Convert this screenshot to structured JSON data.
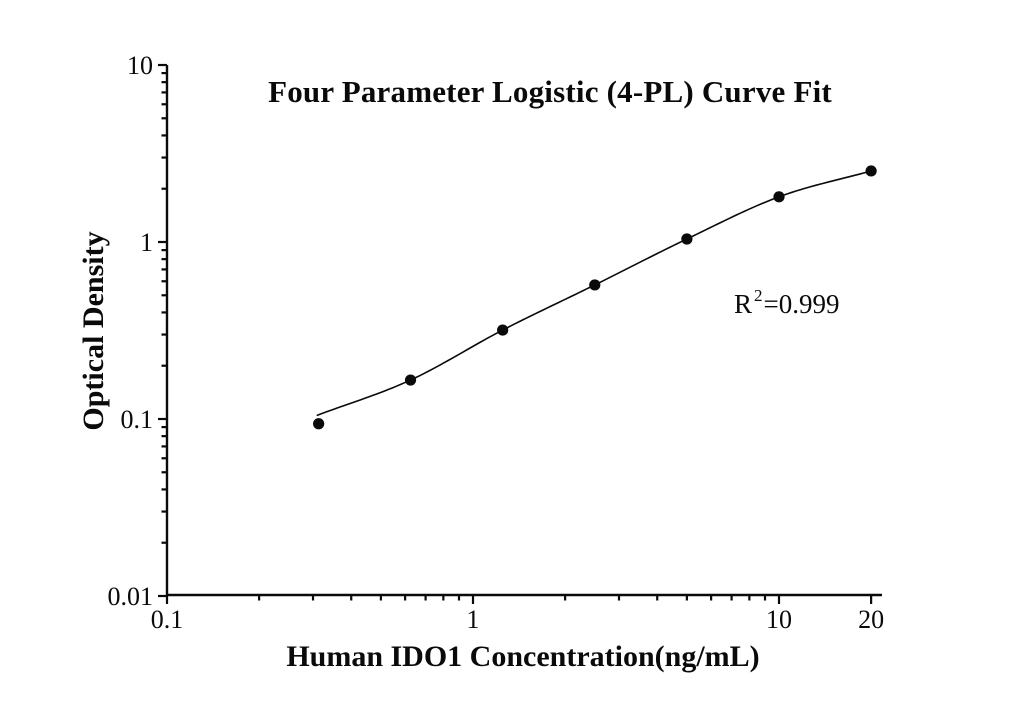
{
  "chart": {
    "title": "Four Parameter Logistic (4-PL) Curve Fit",
    "xlabel": "Human IDO1 Concentration(ng/mL)",
    "ylabel": "Optical Density",
    "annotation": {
      "base": "R",
      "exponent": "2",
      "rest": "=0.999"
    }
  },
  "colors": {
    "ink": "#0a0a0a",
    "background": "#ffffff"
  },
  "chart_data": {
    "type": "scatter",
    "title": "Four Parameter Logistic (4-PL) Curve Fit",
    "xlabel": "Human IDO1 Concentration(ng/mL)",
    "ylabel": "Optical Density",
    "x_scale": "log",
    "y_scale": "log",
    "xlim": [
      0.1,
      22
    ],
    "ylim": [
      0.01,
      10
    ],
    "grid": false,
    "legend": "none",
    "x_major_ticks": {
      "values": [
        0.1,
        1,
        10,
        20
      ],
      "labels": [
        "0.1",
        "1",
        "10",
        "20"
      ]
    },
    "y_major_ticks": {
      "values": [
        10,
        1,
        0.1,
        0.01
      ],
      "labels": [
        "10",
        "1",
        "0.1",
        "0.01"
      ]
    },
    "x_minor_ticks": [
      0.2,
      0.3,
      0.4,
      0.5,
      0.6,
      0.7,
      0.8,
      0.9,
      2,
      3,
      4,
      5,
      6,
      7,
      8,
      9
    ],
    "y_minor_ticks": [
      9,
      8,
      7,
      6,
      5,
      4,
      3,
      2,
      0.9,
      0.8,
      0.7,
      0.6,
      0.5,
      0.4,
      0.3,
      0.2,
      0.09,
      0.08,
      0.07,
      0.06,
      0.05,
      0.04,
      0.03,
      0.02
    ],
    "series": [
      {
        "name": "standard-points",
        "type": "scatter",
        "marker": "filled-circle",
        "x": [
          0.313,
          0.625,
          1.25,
          2.5,
          5,
          10,
          20
        ],
        "y": [
          0.094,
          0.166,
          0.318,
          0.572,
          1.04,
          1.8,
          2.52
        ]
      },
      {
        "name": "4pl-fit-curve",
        "type": "line",
        "x": [
          0.31,
          0.625,
          1.25,
          2.5,
          5,
          10,
          20
        ],
        "y": [
          0.105,
          0.166,
          0.318,
          0.572,
          1.04,
          1.8,
          2.52
        ]
      }
    ],
    "annotations": [
      {
        "text": "R2=0.999",
        "x": 4.9,
        "y": 0.45
      }
    ],
    "r_squared": 0.999
  }
}
